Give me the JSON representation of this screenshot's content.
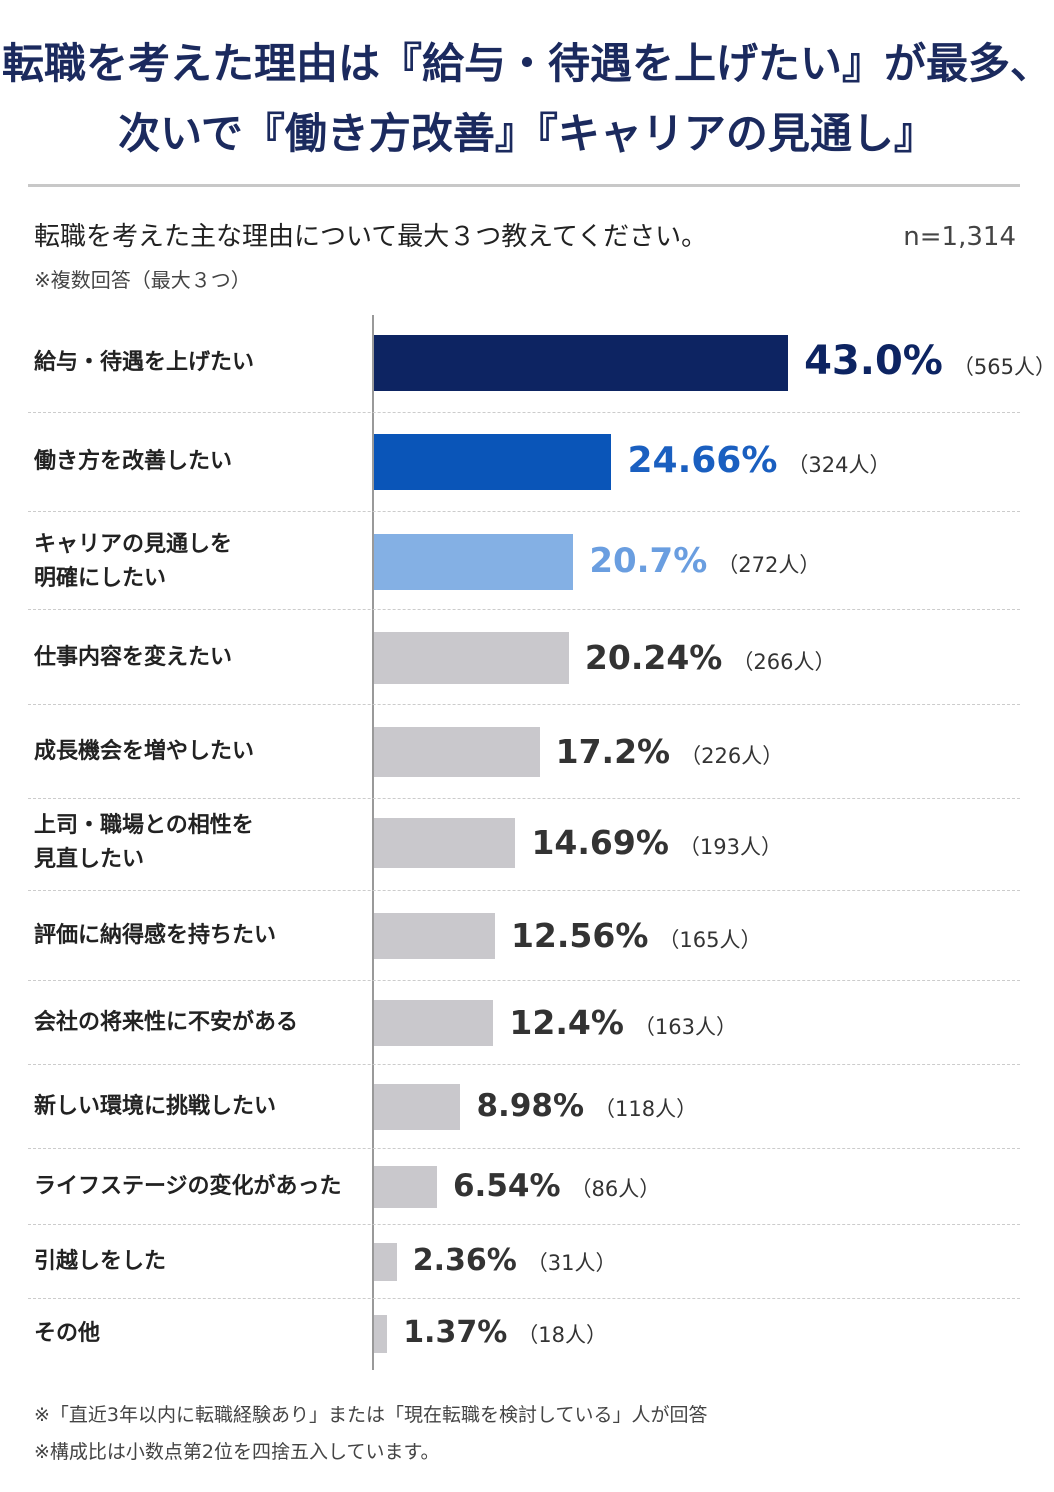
{
  "chart_data": {
    "type": "bar",
    "orientation": "horizontal",
    "title": [
      "転職を考えた理由は『給与・待遇を上げたい』が最多、",
      "次いで『働き方改善』『キャリアの見通し』"
    ],
    "subtitle": "転職を考えた主な理由について最大３つ教えてください。",
    "note": "※複数回答（最大３つ）",
    "sample_size": "n=1,314",
    "categories": [
      "給与・待遇を上げたい",
      "働き方を改善したい",
      "キャリアの見通しを\n明確にしたい",
      "仕事内容を変えたい",
      "成長機会を増やしたい",
      "上司・職場との相性を\n見直したい",
      "評価に納得感を持ちたい",
      "会社の将来性に不安がある",
      "新しい環境に挑戦したい",
      "ライフステージの変化があった",
      "引越しをした",
      "その他"
    ],
    "values": [
      43.0,
      24.66,
      20.7,
      20.24,
      17.2,
      14.69,
      12.56,
      12.4,
      8.98,
      6.54,
      2.36,
      1.37
    ],
    "value_labels": [
      "43.0%",
      "24.66%",
      "20.7%",
      "20.24%",
      "17.2%",
      "14.69%",
      "12.56%",
      "12.4%",
      "8.98%",
      "6.54%",
      "2.36%",
      "1.37%"
    ],
    "count_labels": [
      "（565人）",
      "（324人）",
      "（272人）",
      "（266人）",
      "（226人）",
      "（193人）",
      "（165人）",
      "（163人）",
      "（118人）",
      "（86人）",
      "（31人）",
      "（18人）"
    ],
    "colors": [
      "#0d2462",
      "#0a55b8",
      "#84b0e4",
      "#c9c8cc",
      "#c9c8cc",
      "#c9c8cc",
      "#c9c8cc",
      "#c9c8cc",
      "#c9c8cc",
      "#c9c8cc",
      "#c9c8cc",
      "#c9c8cc"
    ],
    "label_colors": [
      "#0d2462",
      "#1a5fc0",
      "#6a9ee0",
      "#333333",
      "#333333",
      "#333333",
      "#333333",
      "#333333",
      "#333333",
      "#333333",
      "#333333",
      "#333333"
    ],
    "footnotes": [
      "※「直近3年以内に転職経験あり」または「現在転職を検討している」人が回答",
      "※構成比は小数点第2位を四捨五入しています。"
    ]
  }
}
